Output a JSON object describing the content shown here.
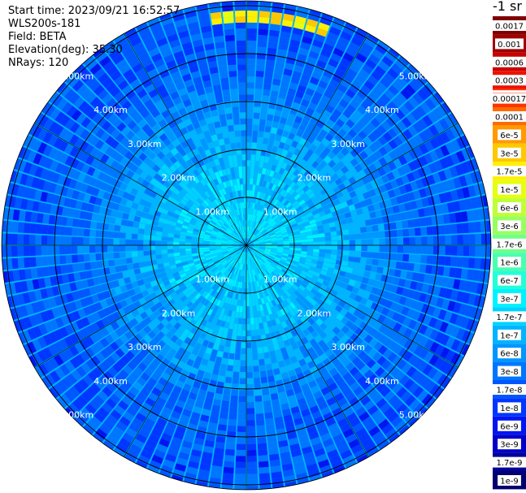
{
  "header": {
    "start_time": "Start time: 2023/09/21 16:52:57",
    "device": "WLS200s-181",
    "field": "Field: BETA",
    "elevation": "Elevation(deg): 35.30",
    "nrays": "NRays: 120"
  },
  "colorbar": {
    "unit": "-1 sr",
    "labels": [
      "0.0017",
      "0.001",
      "0.0006",
      "0.0003",
      "0.00017",
      "0.0001",
      "6e-5",
      "3e-5",
      "1.7e-5",
      "1e-5",
      "6e-6",
      "3e-6",
      "1.7e-6",
      "1e-6",
      "6e-7",
      "3e-7",
      "1.7e-7",
      "1e-7",
      "6e-8",
      "3e-8",
      "1.7e-8",
      "1e-8",
      "6e-9",
      "3e-9",
      "1.7e-9",
      "1e-9"
    ],
    "colors": [
      "#7f0000",
      "#a00000",
      "#c80000",
      "#ee1100",
      "#ff3300",
      "#ff6a00",
      "#ff9a00",
      "#ffc800",
      "#fff000",
      "#e6ff10",
      "#c0ff38",
      "#98ff60",
      "#70ff88",
      "#48ffb0",
      "#22ffd8",
      "#00f2ff",
      "#00d2ff",
      "#00b4ff",
      "#0096ff",
      "#0076ff",
      "#0056ff",
      "#0036ff",
      "#0016f0",
      "#0000c8",
      "#00009c",
      "#000070"
    ]
  },
  "chart_data": {
    "type": "polar-ppi",
    "title": "",
    "field": "BETA",
    "units": "sr-1",
    "range_rings_km": [
      1,
      2,
      3,
      4,
      5
    ],
    "ring_labels": [
      "1.00km",
      "2.00km",
      "3.00km",
      "4.00km",
      "5.00km"
    ],
    "max_range_km": 5.1,
    "nrays": 120,
    "spokes_deg": [
      0,
      30,
      60,
      90,
      120,
      150,
      180,
      210,
      240,
      270,
      300,
      330
    ],
    "radial_profile": {
      "range_km": [
        0.0,
        0.5,
        1.0,
        1.5,
        2.0,
        2.5,
        3.0,
        3.5,
        4.0,
        4.5,
        5.0
      ],
      "typical_beta": [
        3e-07,
        3e-07,
        2e-07,
        1.7e-07,
        1.2e-07,
        8e-08,
        5e-08,
        3e-08,
        2.5e-08,
        2e-08,
        2e-08
      ]
    },
    "features": [
      {
        "azimuth_deg_range": [
          350,
          20
        ],
        "range_km": [
          4.7,
          4.95
        ],
        "beta": 3e-05
      }
    ]
  }
}
